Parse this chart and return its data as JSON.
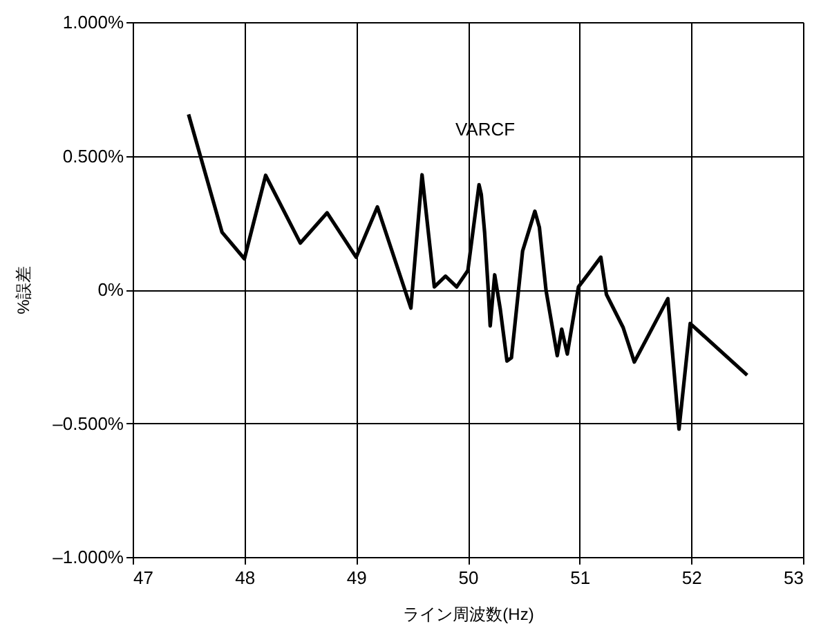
{
  "chart_data": {
    "type": "line",
    "xlabel": "ライン周波数(Hz)",
    "ylabel": "%誤差",
    "annotations": [
      "VARCF"
    ],
    "x": [
      47.5,
      47.8,
      48.0,
      48.19,
      48.5,
      48.74,
      49.0,
      49.19,
      49.49,
      49.59,
      49.7,
      49.8,
      49.9,
      50.0,
      50.1,
      50.12,
      50.15,
      50.18,
      50.2,
      50.24,
      50.29,
      50.35,
      50.39,
      50.49,
      50.6,
      50.64,
      50.7,
      50.8,
      50.84,
      50.89,
      50.99,
      51.09,
      51.19,
      51.24,
      51.39,
      51.49,
      51.79,
      51.89,
      51.99,
      52.5
    ],
    "series": [
      {
        "color": "#000000",
        "values": [
          0.655,
          0.214,
          0.115,
          0.427,
          0.174,
          0.287,
          0.121,
          0.309,
          -0.069,
          0.429,
          0.01,
          0.05,
          0.01,
          0.071,
          0.392,
          0.356,
          0.214,
          0.016,
          -0.136,
          0.055,
          -0.073,
          -0.267,
          -0.255,
          0.144,
          0.293,
          0.233,
          -0.004,
          -0.247,
          -0.148,
          -0.241,
          0.01,
          0.065,
          0.121,
          -0.018,
          -0.142,
          -0.271,
          -0.034,
          -0.522,
          -0.127,
          -0.32
        ]
      }
    ],
    "xlim": [
      47,
      53
    ],
    "xticks": [
      47,
      48,
      49,
      50,
      51,
      52,
      53
    ],
    "ylim": [
      -1.0,
      1.0
    ],
    "yticks": [
      {
        "value": -1.0,
        "label": "–1.000%"
      },
      {
        "value": -0.5,
        "label": "–0.500%"
      },
      {
        "value": 0,
        "label": "0%"
      },
      {
        "value": 0.5,
        "label": "0.500%"
      },
      {
        "value": 1.0,
        "label": "1.000%"
      }
    ],
    "grid": true,
    "marker": "none",
    "line_style": "solid"
  }
}
